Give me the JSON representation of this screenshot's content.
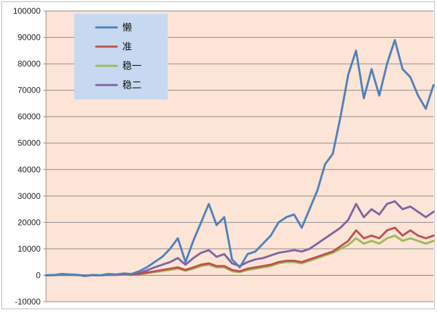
{
  "chart_data": {
    "type": "line",
    "title": "",
    "xlabel": "",
    "ylabel": "",
    "ylim": [
      -10000,
      100000
    ],
    "yticks": [
      -10000,
      0,
      10000,
      20000,
      30000,
      40000,
      50000,
      60000,
      70000,
      80000,
      90000,
      100000
    ],
    "ytick_labels": [
      "-10000",
      "0",
      "10000",
      "20000",
      "30000",
      "40000",
      "50000",
      "60000",
      "70000",
      "80000",
      "90000",
      "100000"
    ],
    "grid": "horizontal",
    "legend_position": "top-left",
    "plot_background": "#fce4d6",
    "legend_background": "#c6d9f0",
    "x": [
      0,
      2,
      4,
      6,
      8,
      10,
      12,
      14,
      16,
      18,
      20,
      22,
      24,
      26,
      28,
      30,
      32,
      34,
      36,
      38,
      40,
      42,
      44,
      46,
      48,
      50,
      52,
      54,
      56,
      58,
      60,
      62,
      64,
      66,
      68,
      70,
      72,
      74,
      76,
      78,
      80,
      82,
      84,
      86,
      88,
      90,
      92,
      94,
      96,
      98,
      100
    ],
    "series": [
      {
        "name": "懒",
        "color": "#4f81bd",
        "values": [
          0,
          100,
          500,
          300,
          200,
          -300,
          100,
          0,
          500,
          300,
          700,
          500,
          1500,
          3000,
          5000,
          7000,
          10000,
          14000,
          5000,
          13000,
          20000,
          27000,
          19000,
          22000,
          6000,
          3000,
          8000,
          9000,
          12000,
          15000,
          20000,
          22000,
          23000,
          18000,
          25000,
          32000,
          42000,
          46000,
          60000,
          76000,
          85000,
          67000,
          78000,
          68000,
          80000,
          89000,
          78000,
          75000,
          68000,
          63000,
          72000
        ]
      },
      {
        "name": "准",
        "color": "#c0504d",
        "values": [
          0,
          50,
          200,
          150,
          100,
          -100,
          50,
          0,
          200,
          150,
          300,
          200,
          500,
          1000,
          1500,
          2000,
          2500,
          3000,
          2000,
          3000,
          4000,
          4500,
          3500,
          3500,
          2000,
          1500,
          2500,
          3000,
          3500,
          4000,
          5000,
          5500,
          5500,
          5000,
          6000,
          7000,
          8000,
          9000,
          11000,
          13000,
          17000,
          14000,
          15000,
          14000,
          17000,
          18000,
          15000,
          17000,
          15000,
          14000,
          15000
        ]
      },
      {
        "name": "稳一",
        "color": "#9bbb59",
        "values": [
          0,
          50,
          200,
          150,
          100,
          -100,
          50,
          0,
          200,
          150,
          300,
          200,
          400,
          800,
          1200,
          1600,
          2000,
          2500,
          1700,
          2500,
          3500,
          4000,
          3000,
          3000,
          1500,
          1200,
          2000,
          2500,
          3000,
          3500,
          4500,
          5000,
          5000,
          4500,
          5500,
          6500,
          7500,
          8500,
          10000,
          11500,
          14000,
          12000,
          13000,
          12000,
          14000,
          15000,
          13000,
          14000,
          13000,
          12000,
          13000
        ]
      },
      {
        "name": "稳二",
        "color": "#8064a2",
        "values": [
          0,
          100,
          300,
          200,
          150,
          -200,
          100,
          0,
          300,
          200,
          400,
          300,
          800,
          1800,
          3000,
          4000,
          5000,
          6500,
          4000,
          6500,
          8500,
          9500,
          7000,
          8000,
          4500,
          3500,
          5000,
          6000,
          6500,
          7500,
          8500,
          9000,
          9500,
          9000,
          10000,
          12000,
          14000,
          16000,
          18000,
          21000,
          27000,
          22000,
          25000,
          23000,
          27000,
          28000,
          25000,
          26000,
          24000,
          22000,
          24000
        ]
      }
    ]
  }
}
